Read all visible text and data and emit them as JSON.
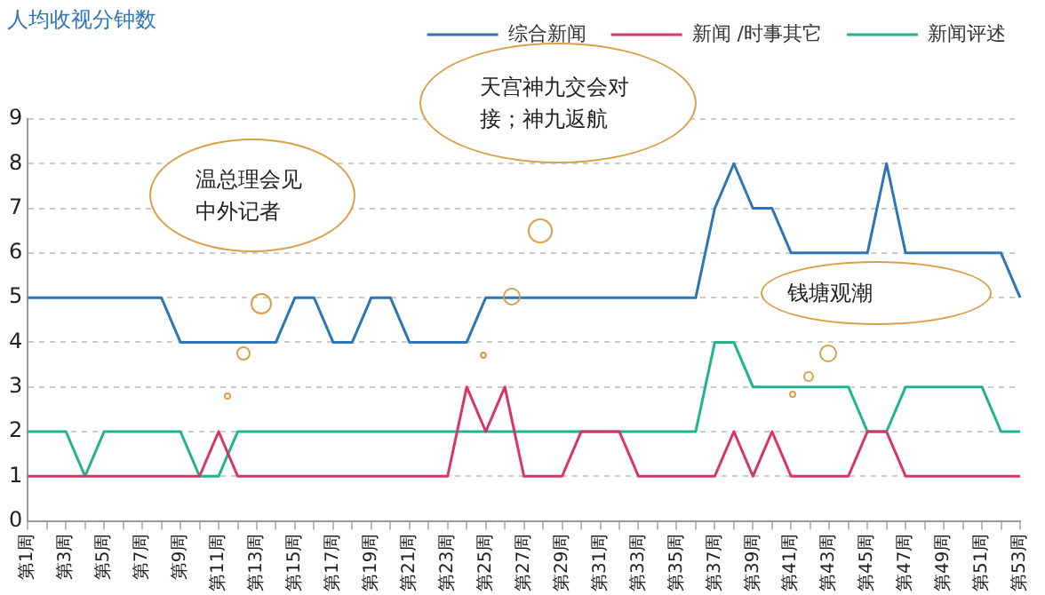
{
  "chart_data": {
    "type": "line",
    "ylabel": "人均收视分钟数",
    "categories": [
      "第1周",
      null,
      "第3周",
      null,
      "第5周",
      null,
      "第7周",
      null,
      "第9周",
      null,
      "第11周",
      null,
      "第13周",
      null,
      "第15周",
      null,
      "第17周",
      null,
      "第19周",
      null,
      "第21周",
      null,
      "第23周",
      null,
      "第25周",
      null,
      "第27周",
      null,
      "第29周",
      null,
      "第31周",
      null,
      "第33周",
      null,
      "第35周",
      null,
      "第37周",
      null,
      "第39周",
      null,
      "第41周",
      null,
      "第43周",
      null,
      "第45周",
      null,
      "第47周",
      null,
      "第49周",
      null,
      "第51周",
      null,
      "第53周"
    ],
    "series": [
      {
        "name": "综合新闻",
        "color": "#2e75b6",
        "values": [
          5,
          5,
          5,
          5,
          5,
          5,
          5,
          5,
          4,
          4,
          4,
          4,
          4,
          4,
          5,
          5,
          4,
          4,
          5,
          5,
          4,
          4,
          4,
          4,
          5,
          5,
          5,
          5,
          5,
          5,
          5,
          5,
          5,
          5,
          5,
          5,
          7,
          8,
          7,
          7,
          6,
          6,
          6,
          6,
          6,
          8,
          6,
          6,
          6,
          6,
          6,
          6,
          5
        ]
      },
      {
        "name": "新闻 /时事其它",
        "color": "#d8336b",
        "values": [
          1,
          1,
          1,
          1,
          1,
          1,
          1,
          1,
          1,
          1,
          2,
          1,
          1,
          1,
          1,
          1,
          1,
          1,
          1,
          1,
          1,
          1,
          1,
          3,
          2,
          3,
          1,
          1,
          1,
          2,
          2,
          2,
          1,
          1,
          1,
          1,
          1,
          2,
          1,
          2,
          1,
          1,
          1,
          1,
          2,
          2,
          1,
          1,
          1,
          1,
          1,
          1,
          1
        ]
      },
      {
        "name": "新闻评述",
        "color": "#1fb38e",
        "values": [
          2,
          2,
          2,
          1,
          2,
          2,
          2,
          2,
          2,
          1,
          1,
          2,
          2,
          2,
          2,
          2,
          2,
          2,
          2,
          2,
          2,
          2,
          2,
          2,
          2,
          2,
          2,
          2,
          2,
          2,
          2,
          2,
          2,
          2,
          2,
          2,
          4,
          4,
          3,
          3,
          3,
          3,
          3,
          3,
          2,
          2,
          3,
          3,
          3,
          3,
          3,
          2,
          2
        ]
      }
    ],
    "ylim": [
      0,
      9
    ],
    "yticks": [
      0,
      1,
      2,
      3,
      4,
      5,
      6,
      7,
      8,
      9
    ],
    "grid": "y",
    "legend": "top right",
    "marker": "none",
    "line_style": "solid",
    "annotations": [
      "温总理会见中外记者",
      "天宫神九交会对接；神九返航",
      "钱塘观潮"
    ]
  }
}
